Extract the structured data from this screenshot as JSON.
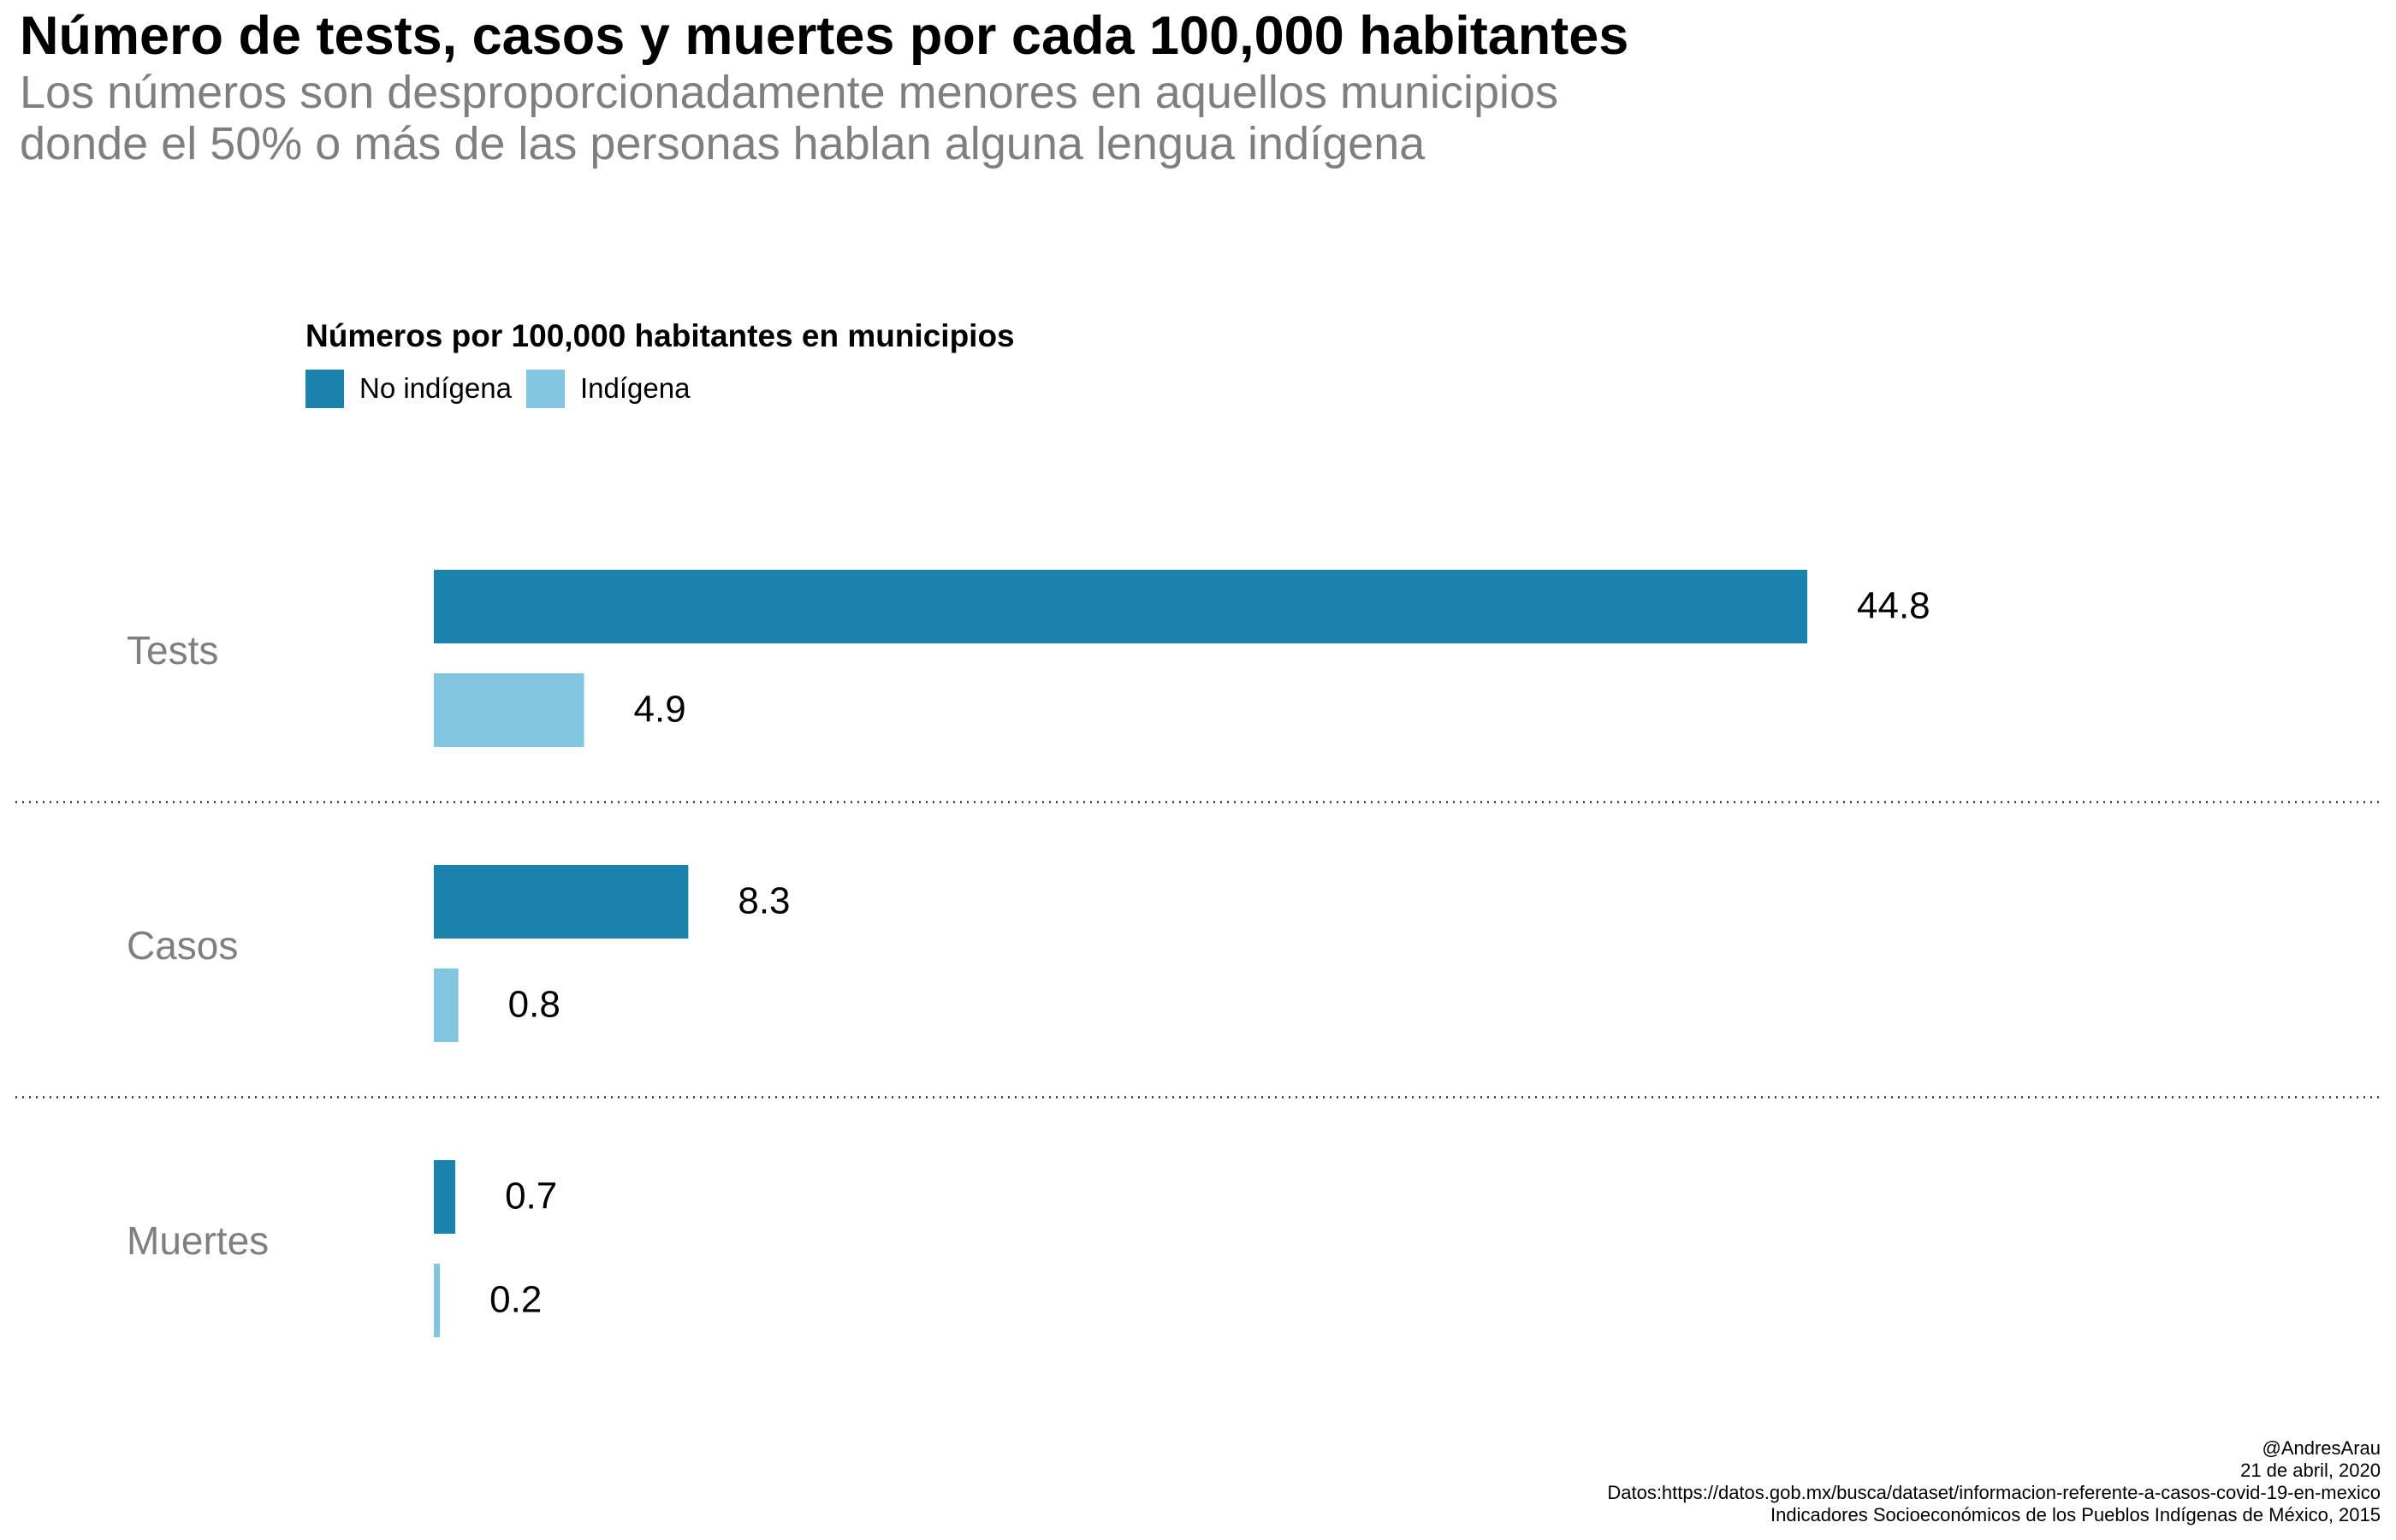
{
  "title": "Número de tests, casos y muertes por cada 100,000 habitantes",
  "subtitle": [
    "Los números son desproporcionadamente menores en aquellos municipios",
    "donde el 50% o más de las personas hablan alguna lengua indígena"
  ],
  "legend": {
    "title": "Números por 100,000 habitantes en municipios",
    "items": [
      {
        "label": "No indígena",
        "color": "#1a82ab"
      },
      {
        "label": "Indígena",
        "color": "#82c5e0"
      }
    ]
  },
  "caption": [
    "@AndresArau",
    "21 de abril, 2020",
    "Datos:https://datos.gob.mx/busca/dataset/informacion-referente-a-casos-covid-19-en-mexico",
    "Indicadores Socioeconómicos de los Pueblos Indígenas de México, 2015"
  ],
  "chart_data": {
    "type": "bar",
    "orientation": "horizontal",
    "categories": [
      "Tests",
      "Casos",
      "Muertes"
    ],
    "series": [
      {
        "name": "No indígena",
        "color": "#1a82ab",
        "values": [
          44.8,
          8.3,
          0.7
        ]
      },
      {
        "name": "Indígena",
        "color": "#82c5e0",
        "values": [
          4.9,
          0.8,
          0.2
        ]
      }
    ],
    "data_labels": true,
    "grid": false,
    "category_separators": "dotted",
    "legend_position": "top-left"
  }
}
